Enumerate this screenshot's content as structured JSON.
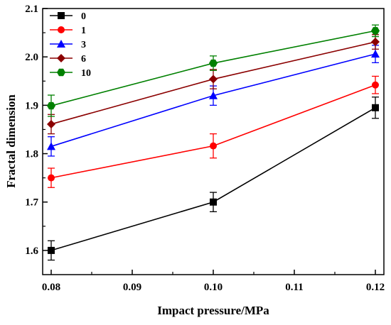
{
  "chart_data": {
    "type": "line",
    "xlabel": "Impact pressure/MPa",
    "ylabel": "Fractal dimension",
    "xlim": [
      0.08,
      0.12
    ],
    "ylim": [
      1.55,
      2.1
    ],
    "x": [
      0.08,
      0.1,
      0.12
    ],
    "xticks": [
      0.08,
      0.09,
      0.1,
      0.11,
      0.12
    ],
    "xtick_labels": [
      "0.08",
      "0.09",
      "0.10",
      "0.11",
      "0.12"
    ],
    "yticks": [
      1.6,
      1.7,
      1.8,
      1.9,
      2.0,
      2.1
    ],
    "ytick_labels": [
      "1.6",
      "1.7",
      "1.8",
      "1.9",
      "2.0",
      "2.1"
    ],
    "grid": false,
    "legend_position": "top-left",
    "series": [
      {
        "name": "0",
        "values": [
          1.6,
          1.7,
          1.895
        ],
        "errors": [
          0.02,
          0.02,
          0.022
        ],
        "color": "#000000",
        "marker": "square"
      },
      {
        "name": "1",
        "values": [
          1.75,
          1.816,
          1.942
        ],
        "errors": [
          0.02,
          0.025,
          0.018
        ],
        "color": "#ff0000",
        "marker": "circle"
      },
      {
        "name": "3",
        "values": [
          1.815,
          1.92,
          2.006
        ],
        "errors": [
          0.02,
          0.02,
          0.018
        ],
        "color": "#0000ff",
        "marker": "triangle"
      },
      {
        "name": "6",
        "values": [
          1.861,
          1.954,
          2.031
        ],
        "errors": [
          0.02,
          0.02,
          0.015
        ],
        "color": "#8b0000",
        "marker": "diamond"
      },
      {
        "name": "10",
        "values": [
          1.899,
          1.987,
          2.054
        ],
        "errors": [
          0.022,
          0.015,
          0.012
        ],
        "color": "#008000",
        "marker": "pentagon"
      }
    ]
  }
}
